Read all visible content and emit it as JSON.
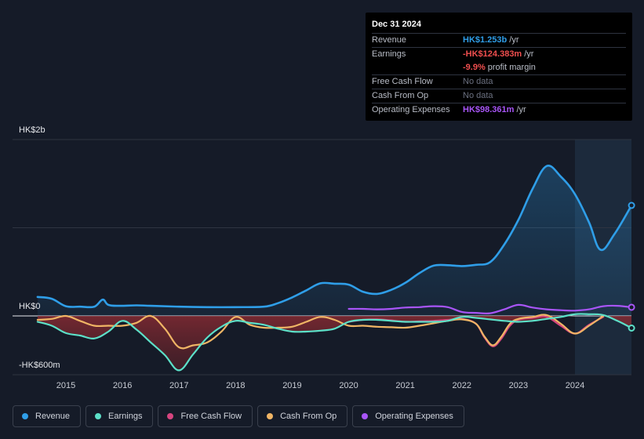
{
  "tooltip": {
    "date": "Dec 31 2024",
    "revenue_label": "Revenue",
    "revenue_value": "HK$1.253b",
    "revenue_unit": "/yr",
    "earnings_label": "Earnings",
    "earnings_value": "-HK$124.383m",
    "earnings_unit": "/yr",
    "margin_value": "-9.9%",
    "margin_text": "profit margin",
    "fcf_label": "Free Cash Flow",
    "fcf_value": "No data",
    "cfo_label": "Cash From Op",
    "cfo_value": "No data",
    "opex_label": "Operating Expenses",
    "opex_value": "HK$98.361m",
    "opex_unit": "/yr"
  },
  "legend": [
    {
      "label": "Revenue",
      "color": "#2f9ee8"
    },
    {
      "label": "Earnings",
      "color": "#5ce0c8"
    },
    {
      "label": "Free Cash Flow",
      "color": "#d6457f"
    },
    {
      "label": "Cash From Op",
      "color": "#f0b565"
    },
    {
      "label": "Operating Expenses",
      "color": "#a855f7"
    }
  ],
  "chart_data": {
    "type": "line",
    "y_unit": "HK$ millions",
    "ylim": [
      -600,
      2000
    ],
    "ytick_labels": [
      {
        "value": 2000,
        "label": "HK$2b"
      },
      {
        "value": 0,
        "label": "HK$0"
      },
      {
        "value": -600,
        "label": "-HK$600m"
      }
    ],
    "xlim": [
      2014.3,
      2025.0
    ],
    "xtick_labels": [
      "2015",
      "2016",
      "2017",
      "2018",
      "2019",
      "2020",
      "2021",
      "2022",
      "2023",
      "2024"
    ],
    "highlight_from": 2024.0,
    "series": [
      {
        "name": "Revenue",
        "color": "#2f9ee8",
        "x": [
          2014.5,
          2014.75,
          2015.0,
          2015.25,
          2015.5,
          2015.65,
          2015.75,
          2015.95,
          2016.25,
          2016.5,
          2017.0,
          2017.5,
          2018.0,
          2018.5,
          2018.75,
          2019.0,
          2019.25,
          2019.5,
          2019.75,
          2020.0,
          2020.25,
          2020.5,
          2020.75,
          2021.0,
          2021.25,
          2021.5,
          2021.75,
          2022.0,
          2022.25,
          2022.5,
          2022.75,
          2023.0,
          2023.25,
          2023.5,
          2023.75,
          2024.0,
          2024.25,
          2024.45,
          2024.7,
          2025.0
        ],
        "y": [
          215,
          195,
          110,
          105,
          105,
          185,
          125,
          115,
          120,
          115,
          105,
          100,
          100,
          105,
          145,
          210,
          290,
          370,
          365,
          355,
          275,
          250,
          295,
          375,
          485,
          570,
          575,
          565,
          580,
          610,
          810,
          1090,
          1440,
          1700,
          1580,
          1380,
          1060,
          750,
          930,
          1253
        ]
      },
      {
        "name": "Earnings",
        "color": "#5ce0c8",
        "x": [
          2014.5,
          2014.75,
          2015.0,
          2015.25,
          2015.5,
          2015.75,
          2016.0,
          2016.25,
          2016.5,
          2016.75,
          2017.0,
          2017.25,
          2017.5,
          2017.75,
          2018.0,
          2018.25,
          2018.5,
          2018.75,
          2019.0,
          2019.25,
          2019.5,
          2019.75,
          2020.0,
          2020.25,
          2020.5,
          2020.75,
          2021.0,
          2021.25,
          2021.5,
          2021.75,
          2022.0,
          2022.25,
          2022.5,
          2022.75,
          2023.0,
          2023.25,
          2023.5,
          2023.75,
          2024.0,
          2024.25,
          2024.5,
          2024.75,
          2025.0
        ],
        "y": [
          -60,
          -100,
          -175,
          -200,
          -230,
          -160,
          -50,
          -140,
          -270,
          -400,
          -555,
          -390,
          -220,
          -110,
          -50,
          -70,
          -90,
          -130,
          -160,
          -160,
          -150,
          -130,
          -60,
          -40,
          -40,
          -50,
          -60,
          -60,
          -60,
          -50,
          -10,
          -20,
          -35,
          -50,
          -60,
          -50,
          -30,
          -10,
          20,
          20,
          10,
          -50,
          -124
        ]
      },
      {
        "name": "Free Cash Flow",
        "color": "#d6457f",
        "x": [
          2020.0,
          2020.25,
          2020.5,
          2020.75,
          2021.0,
          2021.25,
          2021.5,
          2021.75,
          2022.0,
          2022.25,
          2022.4,
          2022.55,
          2022.7,
          2022.85,
          2023.0,
          2023.25,
          2023.5,
          2023.75,
          2024.0,
          2024.25,
          2024.5
        ],
        "y": [
          -60,
          -40,
          -35,
          -45,
          -60,
          -55,
          -50,
          -40,
          -30,
          -80,
          -220,
          -310,
          -230,
          -100,
          -40,
          -20,
          -10,
          -100,
          -180,
          -90,
          -10
        ]
      },
      {
        "name": "Cash From Op",
        "color": "#f0b565",
        "x": [
          2014.5,
          2014.75,
          2015.0,
          2015.25,
          2015.5,
          2015.75,
          2016.0,
          2016.25,
          2016.5,
          2016.75,
          2017.0,
          2017.25,
          2017.5,
          2017.75,
          2018.0,
          2018.25,
          2018.5,
          2018.75,
          2019.0,
          2019.25,
          2019.5,
          2019.75,
          2020.0,
          2020.25,
          2020.5,
          2020.75,
          2021.0,
          2021.25,
          2021.5,
          2021.75,
          2022.0,
          2022.25,
          2022.4,
          2022.55,
          2022.7,
          2022.85,
          2023.0,
          2023.25,
          2023.5,
          2023.75,
          2024.0,
          2024.25,
          2024.5
        ],
        "y": [
          -40,
          -30,
          0,
          -50,
          -100,
          -100,
          -100,
          -70,
          0,
          -130,
          -320,
          -300,
          -270,
          -160,
          -10,
          -90,
          -120,
          -120,
          -110,
          -60,
          -10,
          -40,
          -100,
          -100,
          -110,
          -115,
          -120,
          -100,
          -75,
          -50,
          -35,
          -80,
          -210,
          -300,
          -210,
          -80,
          -30,
          -10,
          10,
          -80,
          -180,
          -100,
          0
        ]
      },
      {
        "name": "Operating Expenses",
        "color": "#a855f7",
        "x": [
          2020.0,
          2020.25,
          2020.5,
          2020.75,
          2021.0,
          2021.25,
          2021.5,
          2021.75,
          2022.0,
          2022.25,
          2022.5,
          2022.75,
          2023.0,
          2023.25,
          2023.5,
          2023.75,
          2024.0,
          2024.25,
          2024.5,
          2024.75,
          2025.0
        ],
        "y": [
          80,
          80,
          75,
          80,
          95,
          100,
          110,
          100,
          45,
          35,
          30,
          75,
          125,
          95,
          75,
          65,
          60,
          75,
          110,
          115,
          98
        ]
      }
    ]
  }
}
